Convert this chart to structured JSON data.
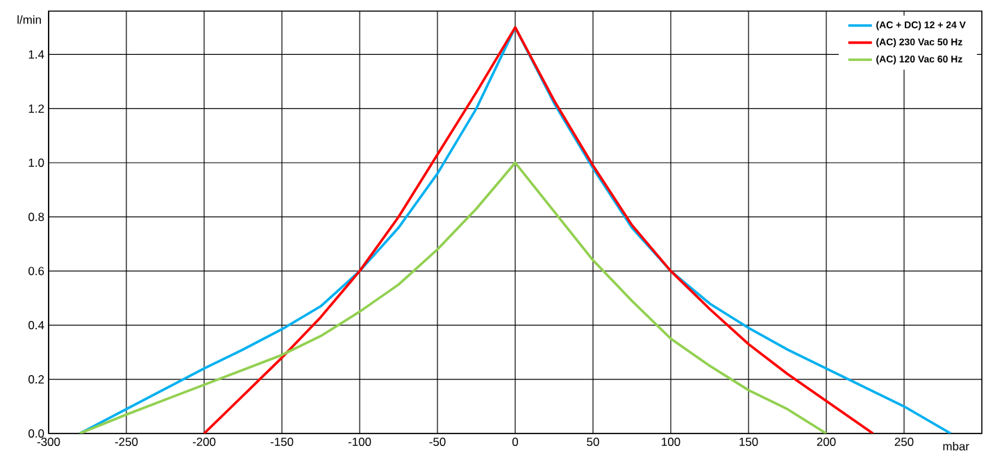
{
  "chart_data": {
    "type": "line",
    "xlabel": "mbar",
    "ylabel": "l/min",
    "xlim": [
      -300,
      300
    ],
    "ylim": [
      0,
      1.56
    ],
    "xticks": [
      -300,
      -250,
      -200,
      -150,
      -100,
      -50,
      0,
      50,
      100,
      150,
      200,
      250
    ],
    "yticks": [
      {
        "value": 0,
        "label": "0.0"
      },
      {
        "value": 0.2,
        "label": "0.2"
      },
      {
        "value": 0.4,
        "label": "0.4"
      },
      {
        "value": 0.6,
        "label": "0.6"
      },
      {
        "value": 0.8,
        "label": "0.8"
      },
      {
        "value": 1.0,
        "label": "1.0"
      },
      {
        "value": 1.2,
        "label": "1.2"
      },
      {
        "value": 1.4,
        "label": "1.4"
      }
    ],
    "grid": true,
    "legend": "top right",
    "marker": "none",
    "line_style": "solid",
    "series": [
      {
        "name": "(AC + DC) 12 + 24 V",
        "color": "#00b0f0",
        "x": [
          -280,
          -250,
          -225,
          -200,
          -175,
          -150,
          -125,
          -100,
          -75,
          -50,
          -25,
          0,
          25,
          50,
          75,
          100,
          125,
          150,
          175,
          200,
          225,
          250,
          280
        ],
        "values": [
          0,
          0.09,
          0.165,
          0.24,
          0.31,
          0.385,
          0.47,
          0.6,
          0.76,
          0.96,
          1.2,
          1.5,
          1.22,
          0.98,
          0.76,
          0.6,
          0.48,
          0.39,
          0.31,
          0.24,
          0.17,
          0.1,
          0
        ]
      },
      {
        "name": "(AC) 230 Vac 50 Hz",
        "color": "#ff0000",
        "x": [
          -200,
          -175,
          -150,
          -125,
          -100,
          -75,
          -50,
          -25,
          0,
          25,
          50,
          75,
          100,
          125,
          150,
          175,
          200,
          230
        ],
        "values": [
          0,
          0.14,
          0.28,
          0.43,
          0.6,
          0.8,
          1.03,
          1.26,
          1.5,
          1.23,
          0.99,
          0.77,
          0.6,
          0.46,
          0.33,
          0.22,
          0.12,
          0
        ]
      },
      {
        "name": "(AC) 120 Vac 60 Hz",
        "color": "#92d050",
        "x": [
          -280,
          -250,
          -200,
          -150,
          -125,
          -100,
          -75,
          -50,
          -25,
          0,
          25,
          50,
          75,
          100,
          125,
          150,
          175,
          200
        ],
        "values": [
          0,
          0.07,
          0.18,
          0.29,
          0.36,
          0.45,
          0.55,
          0.68,
          0.83,
          1.0,
          0.82,
          0.64,
          0.49,
          0.35,
          0.25,
          0.16,
          0.09,
          0
        ]
      }
    ]
  }
}
